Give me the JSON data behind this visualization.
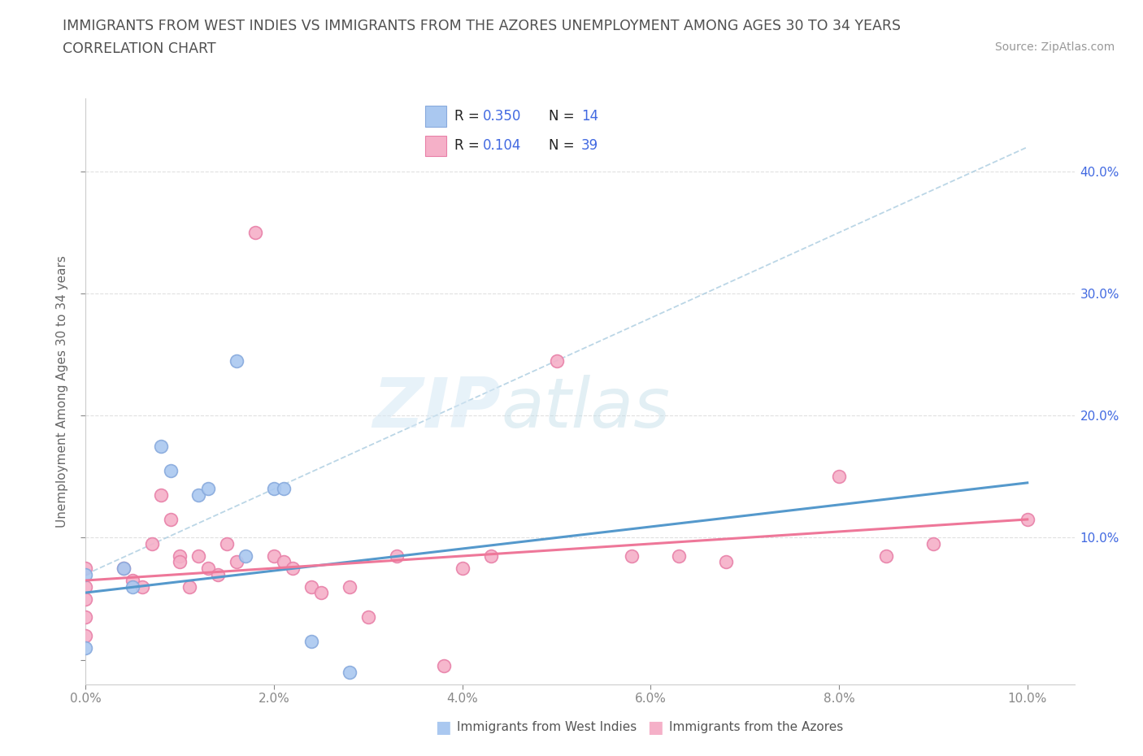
{
  "title_line1": "IMMIGRANTS FROM WEST INDIES VS IMMIGRANTS FROM THE AZORES UNEMPLOYMENT AMONG AGES 30 TO 34 YEARS",
  "title_line2": "CORRELATION CHART",
  "source_text": "Source: ZipAtlas.com",
  "ylabel": "Unemployment Among Ages 30 to 34 years",
  "xlim": [
    0.0,
    0.105
  ],
  "ylim": [
    -0.02,
    0.46
  ],
  "xticks": [
    0.0,
    0.02,
    0.04,
    0.06,
    0.08,
    0.1
  ],
  "yticks": [
    0.0,
    0.1,
    0.2,
    0.3,
    0.4
  ],
  "xticklabels": [
    "0.0%",
    "2.0%",
    "4.0%",
    "6.0%",
    "8.0%",
    "10.0%"
  ],
  "left_yticklabels": [
    "",
    "",
    "",
    "",
    ""
  ],
  "right_yticklabels": [
    "",
    "10.0%",
    "20.0%",
    "30.0%",
    "40.0%"
  ],
  "watermark_zip": "ZIP",
  "watermark_atlas": "atlas",
  "legend_label_blue": "Immigrants from West Indies",
  "legend_label_pink": "Immigrants from the Azores",
  "blue_scatter_x": [
    0.0,
    0.0,
    0.004,
    0.005,
    0.008,
    0.009,
    0.012,
    0.013,
    0.016,
    0.017,
    0.02,
    0.021,
    0.024,
    0.028
  ],
  "blue_scatter_y": [
    0.07,
    0.01,
    0.075,
    0.06,
    0.175,
    0.155,
    0.135,
    0.14,
    0.245,
    0.085,
    0.14,
    0.14,
    0.015,
    -0.01
  ],
  "pink_scatter_x": [
    0.0,
    0.0,
    0.0,
    0.0,
    0.0,
    0.004,
    0.005,
    0.006,
    0.007,
    0.008,
    0.009,
    0.01,
    0.01,
    0.011,
    0.012,
    0.013,
    0.014,
    0.015,
    0.016,
    0.018,
    0.02,
    0.021,
    0.022,
    0.024,
    0.025,
    0.028,
    0.03,
    0.033,
    0.038,
    0.04,
    0.043,
    0.05,
    0.058,
    0.063,
    0.068,
    0.08,
    0.085,
    0.09,
    0.1
  ],
  "pink_scatter_y": [
    0.075,
    0.06,
    0.05,
    0.035,
    0.02,
    0.075,
    0.065,
    0.06,
    0.095,
    0.135,
    0.115,
    0.085,
    0.08,
    0.06,
    0.085,
    0.075,
    0.07,
    0.095,
    0.08,
    0.35,
    0.085,
    0.08,
    0.075,
    0.06,
    0.055,
    0.06,
    0.035,
    0.085,
    -0.005,
    0.075,
    0.085,
    0.245,
    0.085,
    0.085,
    0.08,
    0.15,
    0.085,
    0.095,
    0.115
  ],
  "blue_trend_x": [
    0.0,
    0.1
  ],
  "blue_trend_y": [
    0.055,
    0.145
  ],
  "pink_trend_x": [
    0.0,
    0.1
  ],
  "pink_trend_y": [
    0.065,
    0.115
  ],
  "dashed_line_x": [
    0.0,
    0.1
  ],
  "dashed_line_y": [
    0.07,
    0.42
  ],
  "background_color": "#ffffff",
  "title_color": "#505050",
  "axis_tick_color": "#888888",
  "right_label_color": "#4169E1",
  "scatter_blue_face": "#aac8f0",
  "scatter_blue_edge": "#88aadd",
  "scatter_pink_face": "#f5b0c8",
  "scatter_pink_edge": "#e880a8",
  "trend_blue_color": "#5599cc",
  "trend_pink_color": "#ee7799",
  "dashed_color": "#aacce0",
  "grid_color": "#e0e0e0",
  "legend_box_color": "#dddddd",
  "legend_blue_box": "#aac8f0",
  "legend_pink_box": "#f5b0c8",
  "legend_text_black": "#222222",
  "legend_text_blue": "#4169E1"
}
